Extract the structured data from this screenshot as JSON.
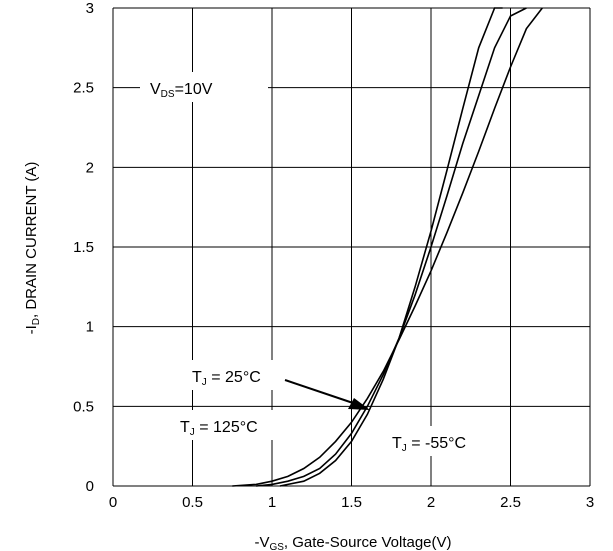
{
  "chart_data": {
    "type": "line",
    "xlabel": "-V",
    "xlabel_sub": "GS",
    "xlabel_rest": ", Gate-Source Voltage(V)",
    "ylabel": "-I",
    "ylabel_sub": "D",
    "ylabel_rest": ", DRAIN CURRENT (A)",
    "xlim": [
      0,
      3
    ],
    "ylim": [
      0,
      3
    ],
    "x_ticks": [
      "0",
      "0.5",
      "1",
      "1.5",
      "2",
      "2.5",
      "3"
    ],
    "y_ticks": [
      "0",
      "0.5",
      "1",
      "1.5",
      "2",
      "2.5",
      "3"
    ],
    "grid": true,
    "series": [
      {
        "name": "TJ = 125°C",
        "x": [
          0.75,
          0.9,
          1.0,
          1.1,
          1.2,
          1.3,
          1.4,
          1.5,
          1.6,
          1.7,
          1.8,
          1.9,
          2.0,
          2.1,
          2.2,
          2.3,
          2.4,
          2.5,
          2.6,
          2.7
        ],
        "y": [
          0.0,
          0.01,
          0.03,
          0.06,
          0.11,
          0.18,
          0.28,
          0.4,
          0.55,
          0.72,
          0.92,
          1.13,
          1.35,
          1.59,
          1.84,
          2.1,
          2.37,
          2.63,
          2.87,
          3.0
        ]
      },
      {
        "name": "TJ = 25°C",
        "x": [
          0.9,
          1.0,
          1.1,
          1.2,
          1.3,
          1.4,
          1.5,
          1.6,
          1.7,
          1.8,
          1.9,
          2.0,
          2.1,
          2.2,
          2.3,
          2.4,
          2.5,
          2.6
        ],
        "y": [
          0.0,
          0.01,
          0.03,
          0.06,
          0.11,
          0.2,
          0.33,
          0.5,
          0.7,
          0.93,
          1.2,
          1.5,
          1.82,
          2.15,
          2.45,
          2.75,
          2.95,
          3.0
        ]
      },
      {
        "name": "TJ = -55°C",
        "x": [
          1.05,
          1.1,
          1.2,
          1.3,
          1.4,
          1.5,
          1.6,
          1.7,
          1.8,
          1.9,
          2.0,
          2.1,
          2.2,
          2.3,
          2.4,
          2.45
        ],
        "y": [
          0.0,
          0.01,
          0.03,
          0.08,
          0.16,
          0.28,
          0.45,
          0.67,
          0.93,
          1.25,
          1.6,
          1.98,
          2.37,
          2.75,
          3.0,
          3.0
        ]
      }
    ],
    "annotations": {
      "vds": {
        "main": "V",
        "sub": "DS",
        "rest": "=10V"
      },
      "tj25": {
        "main": "T",
        "sub": "J",
        "rest": " = 25°C"
      },
      "tj125": {
        "main": "T",
        "sub": "J",
        "rest": " = 125°C"
      },
      "tjm55": {
        "main": "T",
        "sub": "J",
        "rest": " = -55°C"
      }
    }
  }
}
